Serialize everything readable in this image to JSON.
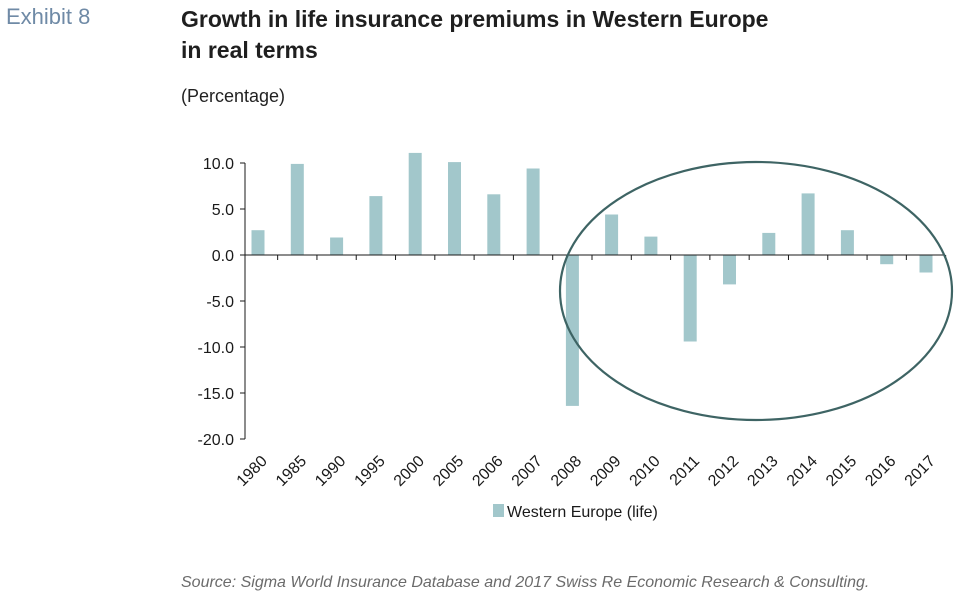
{
  "header": {
    "exhibit": "Exhibit 8",
    "title_lines": [
      "Growth in life insurance premiums in Western Europe",
      "in real terms"
    ],
    "subtitle": "(Percentage)"
  },
  "footer": {
    "source": "Source: Sigma World Insurance Database and 2017 Swiss Re Economic Research & Consulting."
  },
  "colors": {
    "bar": "#a2c7cb",
    "ellipse": "#3e6464",
    "axis": "#1a1a1a"
  },
  "chart_data": {
    "type": "bar",
    "categories": [
      "1980",
      "1985",
      "1990",
      "1995",
      "2000",
      "2005",
      "2006",
      "2007",
      "2008",
      "2009",
      "2010",
      "2011",
      "2012",
      "2013",
      "2014",
      "2015",
      "2016",
      "2017"
    ],
    "series": [
      {
        "name": "Western Europe (life)",
        "values": [
          2.7,
          9.9,
          1.9,
          6.4,
          11.1,
          10.1,
          6.6,
          9.4,
          -16.4,
          4.4,
          2.0,
          -9.4,
          -3.2,
          2.4,
          6.7,
          2.7,
          -1.0,
          -1.9
        ]
      }
    ],
    "ylim": [
      -20,
      10
    ],
    "yticks": [
      "10.0",
      "5.0",
      "0.0",
      "-5.0",
      "-10.0",
      "-15.0",
      "-20.0"
    ],
    "ytick_values": [
      10,
      5,
      0,
      -5,
      -10,
      -15,
      -20
    ],
    "legend_position": "bottom-center",
    "grid": false,
    "annotation": "ellipse highlighting 2008-2017"
  }
}
